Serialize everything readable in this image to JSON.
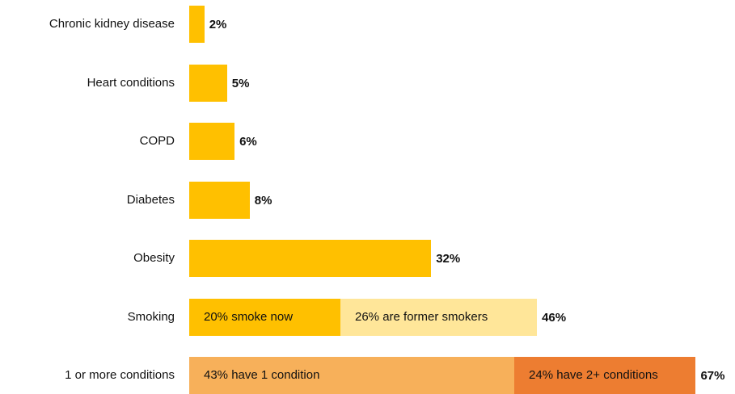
{
  "chart_data": {
    "type": "bar",
    "orientation": "horizontal",
    "stacked": true,
    "categories": [
      "Chronic kidney disease",
      "Heart conditions",
      "COPD",
      "Diabetes",
      "Obesity",
      "Smoking",
      "1 or more conditions"
    ],
    "series_colors": [
      "#ffc000",
      "#ffe699",
      "#f4b183",
      "#ed7d31"
    ],
    "bars": [
      {
        "category": "Chronic kidney disease",
        "total_label": "2%",
        "segments": [
          {
            "value": 2,
            "color": "#ffc000",
            "label": ""
          }
        ]
      },
      {
        "category": "Heart conditions",
        "total_label": "5%",
        "segments": [
          {
            "value": 5,
            "color": "#ffc000",
            "label": ""
          }
        ]
      },
      {
        "category": "COPD",
        "total_label": "6%",
        "segments": [
          {
            "value": 6,
            "color": "#ffc000",
            "label": ""
          }
        ]
      },
      {
        "category": "Diabetes",
        "total_label": "8%",
        "segments": [
          {
            "value": 8,
            "color": "#ffc000",
            "label": ""
          }
        ]
      },
      {
        "category": "Obesity",
        "total_label": "32%",
        "segments": [
          {
            "value": 32,
            "color": "#ffc000",
            "label": ""
          }
        ]
      },
      {
        "category": "Smoking",
        "total_label": "46%",
        "segments": [
          {
            "value": 20,
            "color": "#ffc000",
            "label": "20% smoke now"
          },
          {
            "value": 26,
            "color": "#ffe699",
            "label": "26%  are former smokers"
          }
        ]
      },
      {
        "category": "1 or more conditions",
        "total_label": "67%",
        "segments": [
          {
            "value": 43,
            "color": "#f7b05a",
            "label": "43% have 1 condition"
          },
          {
            "value": 24,
            "color": "#ed7d31",
            "label": "24% have 2+ conditions"
          }
        ]
      }
    ],
    "xlim": [
      0,
      70
    ],
    "grid": false,
    "legend": "none"
  }
}
